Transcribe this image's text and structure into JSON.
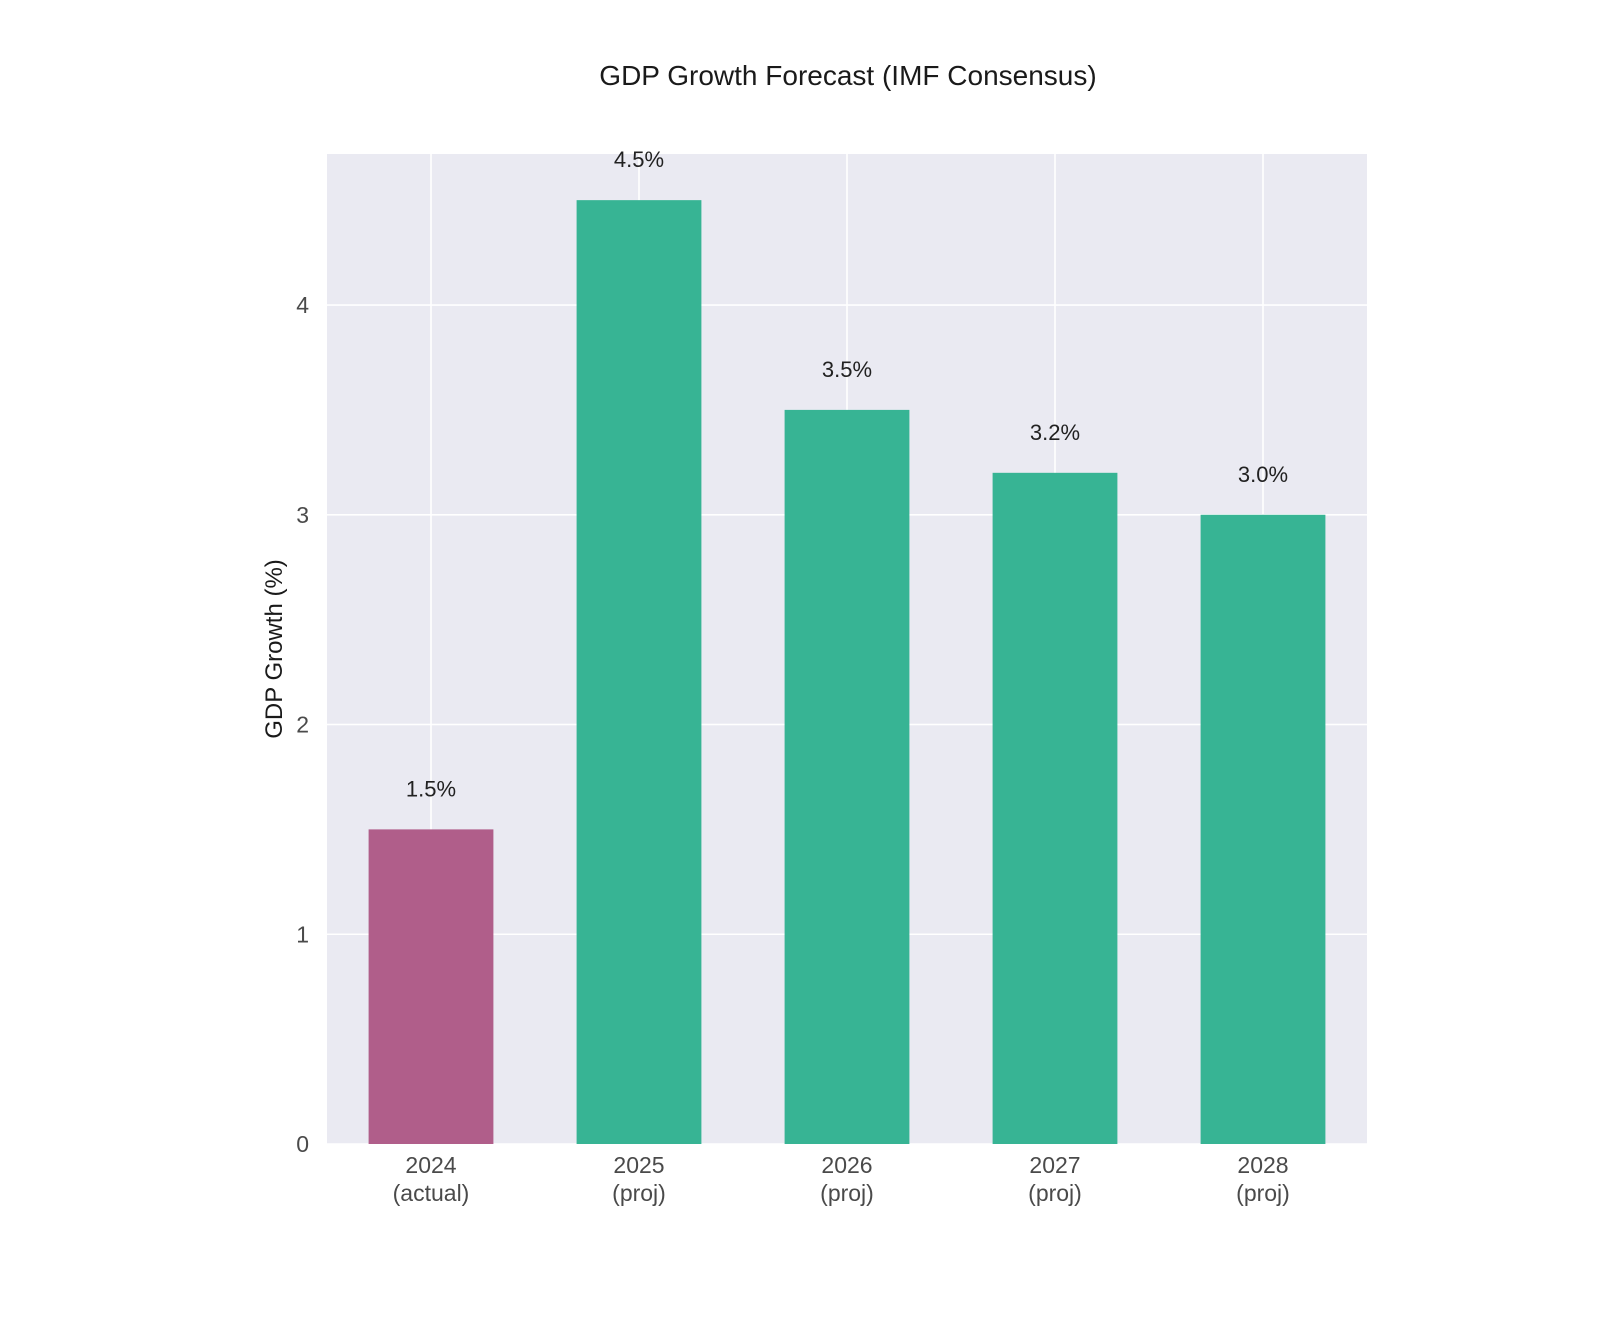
{
  "chart_data": {
    "type": "bar",
    "title": "GDP Growth Forecast (IMF Consensus)",
    "xlabel": "",
    "ylabel": "GDP Growth (%)",
    "categories": [
      [
        "2024",
        "(actual)"
      ],
      [
        "2025",
        "(proj)"
      ],
      [
        "2026",
        "(proj)"
      ],
      [
        "2027",
        "(proj)"
      ],
      [
        "2028",
        "(proj)"
      ]
    ],
    "values": [
      1.5,
      4.5,
      3.5,
      3.2,
      3.0
    ],
    "value_labels": [
      "1.5%",
      "4.5%",
      "3.5%",
      "3.2%",
      "3.0%"
    ],
    "bar_colors": [
      "#b05e8a",
      "#37b494",
      "#37b494",
      "#37b494",
      "#37b494"
    ],
    "yticks": [
      0,
      1,
      2,
      3,
      4
    ],
    "ylim": [
      0,
      4.72
    ],
    "grid": true,
    "plot_background": "#eaeaf2",
    "grid_color": "#ffffff"
  }
}
